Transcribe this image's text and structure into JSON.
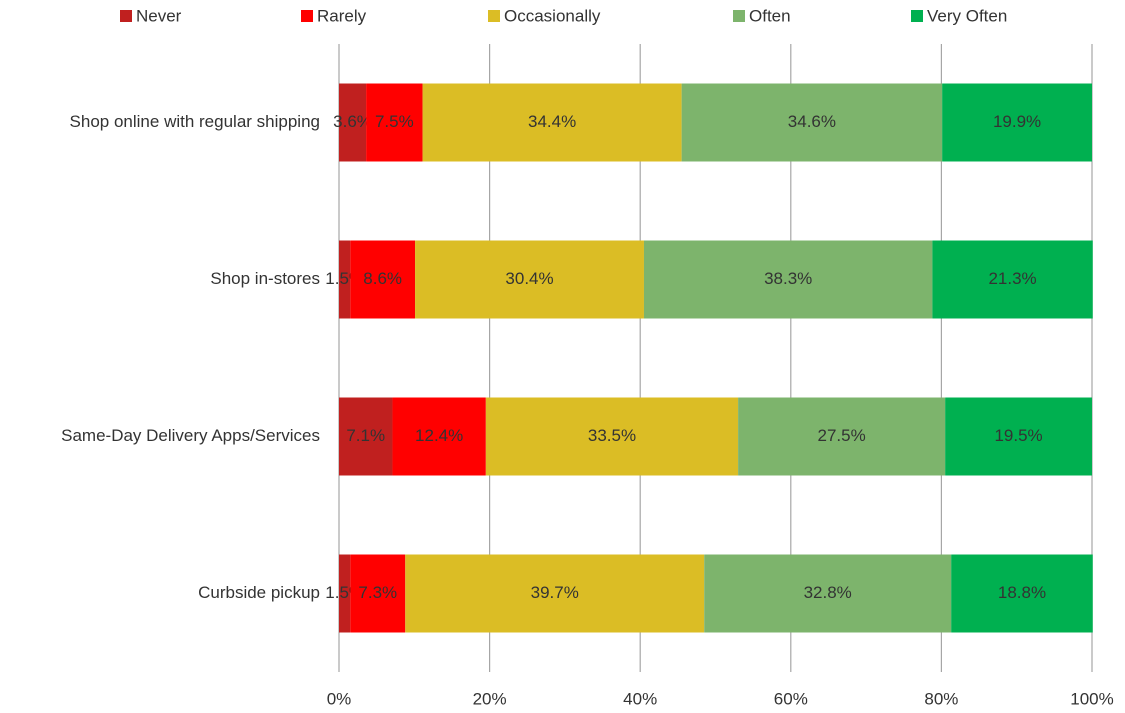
{
  "chart_data": {
    "type": "bar",
    "orientation": "horizontal",
    "stacked": true,
    "categories": [
      "Shop online with regular shipping",
      "Shop in-stores",
      "Same-Day Delivery Apps/Services",
      "Curbside pickup"
    ],
    "series": [
      {
        "name": "Never",
        "color": "#c0201f",
        "values": [
          3.6,
          1.5,
          7.1,
          1.5
        ],
        "value_labels": [
          "3.6%",
          "1.5%",
          "7.1%",
          "1.5%"
        ]
      },
      {
        "name": "Rarely",
        "color": "#ff0000",
        "values": [
          7.5,
          8.6,
          12.4,
          7.3
        ],
        "value_labels": [
          "7.5%",
          "8.6%",
          "12.4%",
          "7.3%"
        ]
      },
      {
        "name": "Occasionally",
        "color": "#dbbd25",
        "values": [
          34.4,
          30.4,
          33.5,
          39.7
        ],
        "value_labels": [
          "34.4%",
          "30.4%",
          "33.5%",
          "39.7%"
        ]
      },
      {
        "name": "Often",
        "color": "#7db46c",
        "values": [
          34.6,
          38.3,
          27.5,
          32.8
        ],
        "value_labels": [
          "34.6%",
          "38.3%",
          "27.5%",
          "32.8%"
        ]
      },
      {
        "name": "Very Often",
        "color": "#00b050",
        "values": [
          19.9,
          21.3,
          19.5,
          18.8
        ],
        "value_labels": [
          "19.9%",
          "21.3%",
          "19.5%",
          "18.8%"
        ]
      }
    ],
    "xlim": [
      0,
      100
    ],
    "xticks": [
      {
        "value": 0,
        "label": "0%"
      },
      {
        "value": 20,
        "label": "20%"
      },
      {
        "value": 40,
        "label": "40%"
      },
      {
        "value": 60,
        "label": "60%"
      },
      {
        "value": 80,
        "label": "80%"
      },
      {
        "value": 100,
        "label": "100%"
      }
    ],
    "grid": true,
    "legend": "top"
  }
}
